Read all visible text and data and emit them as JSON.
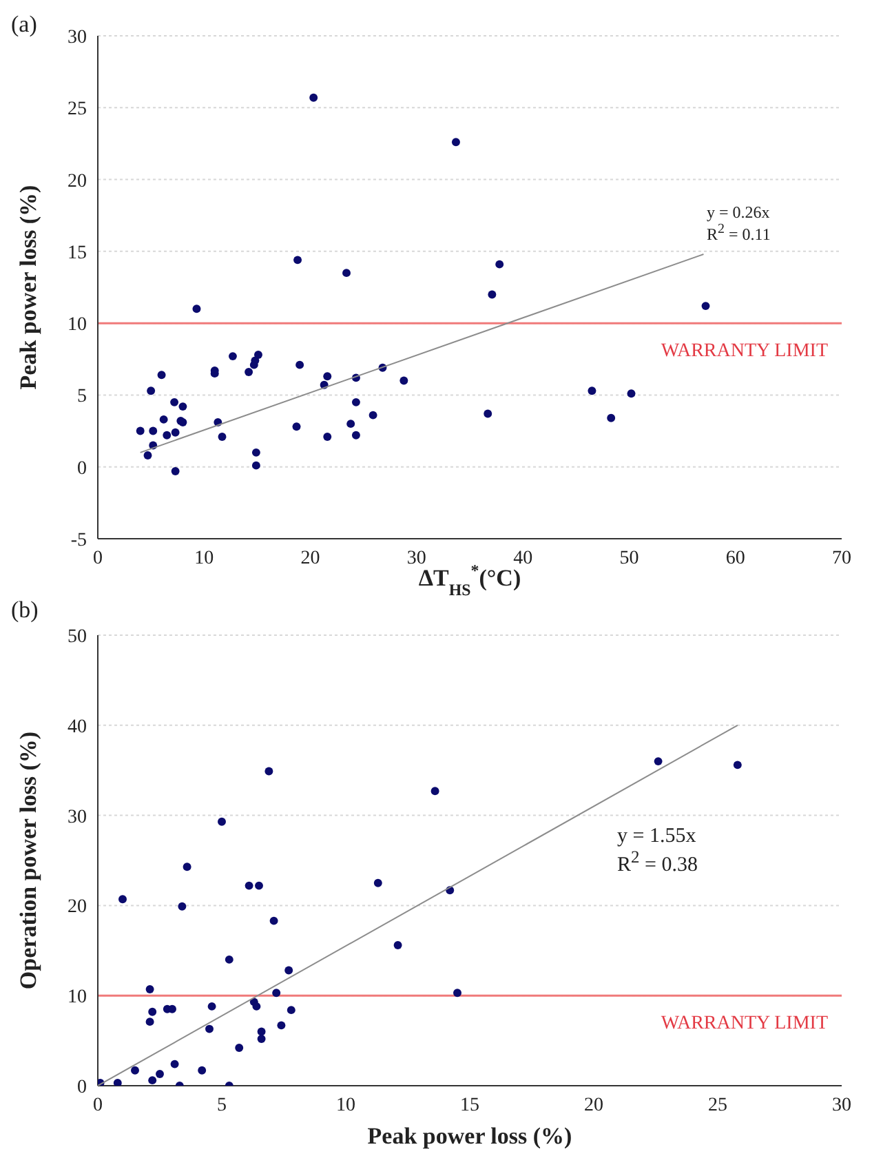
{
  "chart_data": [
    {
      "type": "scatter",
      "title": "(a)",
      "xlabel": "ΔT$_{HS}$$^{*}$(°C)",
      "ylabel": "Peak power loss (%)",
      "xlim": [
        0,
        70
      ],
      "xticks": [
        0,
        10,
        20,
        30,
        40,
        50,
        60,
        70
      ],
      "ylim": [
        -5,
        30
      ],
      "yticks": [
        -5,
        0,
        5,
        10,
        15,
        20,
        25,
        30
      ],
      "grid": "y",
      "marker": "circle",
      "series": [
        {
          "color": "#0b0b6e",
          "x": [
            4,
            4.7,
            5,
            5.2,
            5.2,
            6,
            6.2,
            6.5,
            7.2,
            7.3,
            7.3,
            7.8,
            8,
            8,
            9.3,
            11,
            11,
            11.3,
            11.7,
            12.7,
            14.2,
            14.7,
            14.8,
            15.1,
            14.9,
            14.9,
            18.7,
            18.8,
            19,
            20.3,
            21.3,
            21.6,
            21.6,
            23.4,
            23.8,
            24.3,
            24.3,
            24.3,
            25.9,
            26.8,
            28.8,
            33.7,
            36.7,
            37.1,
            37.8,
            46.5,
            48.3,
            50.2,
            57.2
          ],
          "values": [
            2.5,
            0.8,
            5.3,
            1.5,
            2.5,
            6.4,
            3.3,
            2.2,
            4.5,
            2.4,
            -0.3,
            3.2,
            4.2,
            3.1,
            11,
            6.7,
            6.5,
            3.1,
            2.1,
            7.7,
            6.6,
            7.1,
            7.4,
            7.8,
            1,
            0.1,
            2.8,
            14.4,
            7.1,
            25.7,
            5.7,
            6.3,
            2.1,
            13.5,
            3,
            4.5,
            6.2,
            2.2,
            3.6,
            6.9,
            6,
            22.6,
            3.7,
            12,
            14.1,
            5.3,
            3.4,
            5.1,
            11.2
          ]
        },
        {
          "type": "line",
          "marker": "none",
          "color": "#8c8c8c",
          "x": [
            4,
            57
          ],
          "values": [
            1.0,
            14.8
          ]
        }
      ],
      "ref_lines": [
        {
          "axis": "y",
          "value": 10,
          "label": "WARRANTY LIMIT",
          "color": "#f07a7a"
        }
      ],
      "annotations": [
        "y = 0.26x",
        "R$^{2}$ = 0.11"
      ]
    },
    {
      "type": "scatter",
      "title": "(b)",
      "xlabel": "Peak power loss (%)",
      "ylabel": "Operation power loss (%)",
      "xlim": [
        0,
        30
      ],
      "xticks": [
        0,
        5,
        10,
        15,
        20,
        25,
        30
      ],
      "ylim": [
        0,
        50
      ],
      "yticks": [
        0,
        10,
        20,
        30,
        40,
        50
      ],
      "grid": "y",
      "marker": "circle",
      "series": [
        {
          "color": "#0b0b6e",
          "x": [
            0.1,
            0.8,
            1,
            1.5,
            2.1,
            2.1,
            2.2,
            2.2,
            2.5,
            2.8,
            3,
            3.1,
            3.3,
            3.4,
            3.6,
            4.2,
            4.5,
            4.6,
            5,
            5.3,
            5.3,
            5.7,
            6.1,
            6.5,
            6.3,
            6.4,
            6.6,
            6.6,
            6.9,
            7.1,
            7.2,
            7.4,
            7.7,
            7.8,
            11.3,
            12.1,
            13.6,
            14.2,
            14.5,
            22.6,
            25.8
          ],
          "values": [
            0.3,
            0.3,
            20.7,
            1.7,
            10.7,
            7.1,
            8.2,
            0.6,
            1.3,
            8.5,
            8.5,
            2.4,
            0,
            19.9,
            24.3,
            1.7,
            6.3,
            8.8,
            29.3,
            0,
            14,
            4.2,
            22.2,
            22.2,
            9.3,
            8.8,
            6,
            5.2,
            34.9,
            18.3,
            10.3,
            6.7,
            12.8,
            8.4,
            22.5,
            15.6,
            32.7,
            21.7,
            10.3,
            36,
            35.6
          ]
        },
        {
          "type": "line",
          "marker": "none",
          "color": "#8c8c8c",
          "x": [
            0,
            25.8
          ],
          "values": [
            0,
            40
          ]
        }
      ],
      "ref_lines": [
        {
          "axis": "y",
          "value": 10,
          "label": "WARRANTY LIMIT",
          "color": "#f07a7a"
        }
      ],
      "annotations": [
        "y = 1.55x",
        "R$^{2}$ = 0.38"
      ]
    }
  ]
}
